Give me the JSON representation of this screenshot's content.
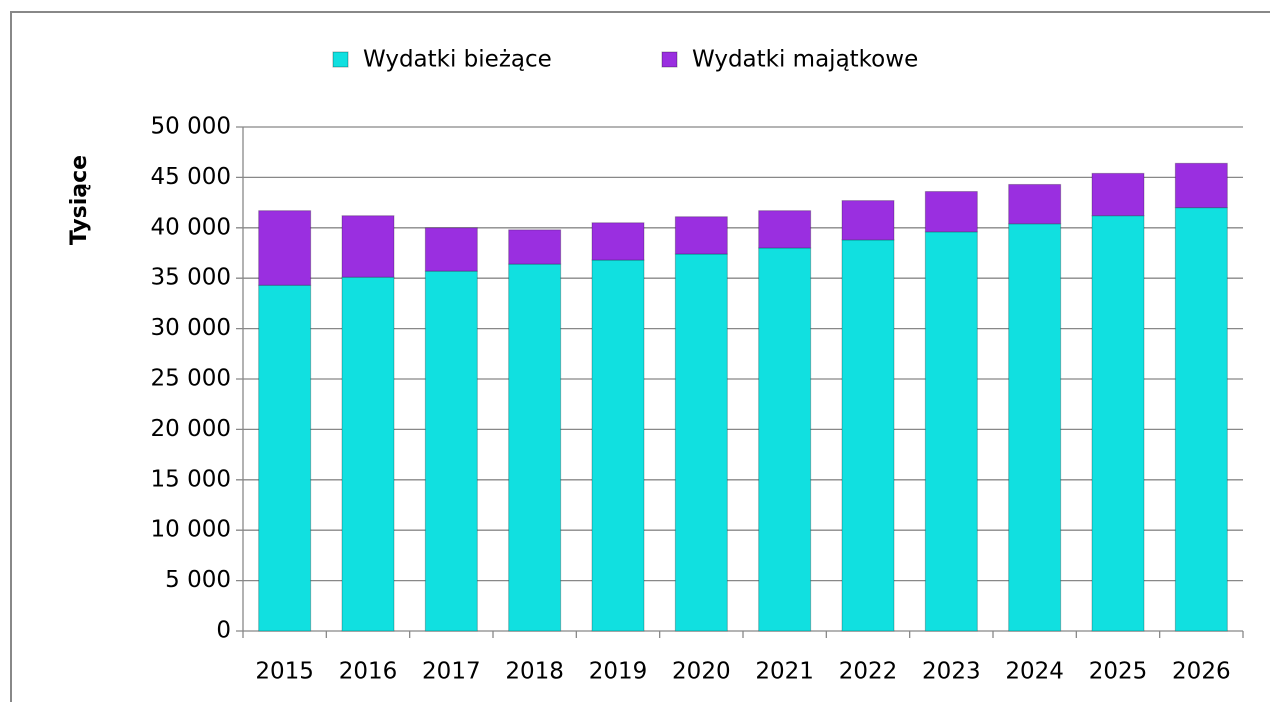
{
  "chart_data": {
    "type": "stacked_bar",
    "ylabel": "Tysiące",
    "categories": [
      "2015",
      "2016",
      "2017",
      "2018",
      "2019",
      "2020",
      "2021",
      "2022",
      "2023",
      "2024",
      "2025",
      "2026"
    ],
    "series": [
      {
        "name": "Wydatki bieżące",
        "color": "#11e0e0",
        "values": [
          34300,
          35100,
          35700,
          36400,
          36800,
          37400,
          38000,
          38800,
          39600,
          40400,
          41200,
          42000
        ]
      },
      {
        "name": "Wydatki majątkowe",
        "color": "#9a2fe0",
        "values": [
          7400,
          6100,
          4300,
          3400,
          3700,
          3700,
          3700,
          3900,
          4000,
          3900,
          4200,
          4400
        ]
      }
    ],
    "ylim": [
      0,
      50000
    ],
    "yticks": [
      0,
      {
        "value": 5000,
        "label": "5 000"
      },
      {
        "value": 10000,
        "label": "10 000"
      },
      {
        "value": 15000,
        "label": "15 000"
      },
      {
        "value": 20000,
        "label": "20 000"
      },
      {
        "value": 25000,
        "label": "25 000"
      },
      {
        "value": 30000,
        "label": "30 000"
      },
      {
        "value": 35000,
        "label": "35 000"
      },
      {
        "value": 40000,
        "label": "40 000"
      },
      {
        "value": 45000,
        "label": "45 000"
      },
      {
        "value": 50000,
        "label": "50 000"
      }
    ],
    "grid": true,
    "legend": "top"
  }
}
